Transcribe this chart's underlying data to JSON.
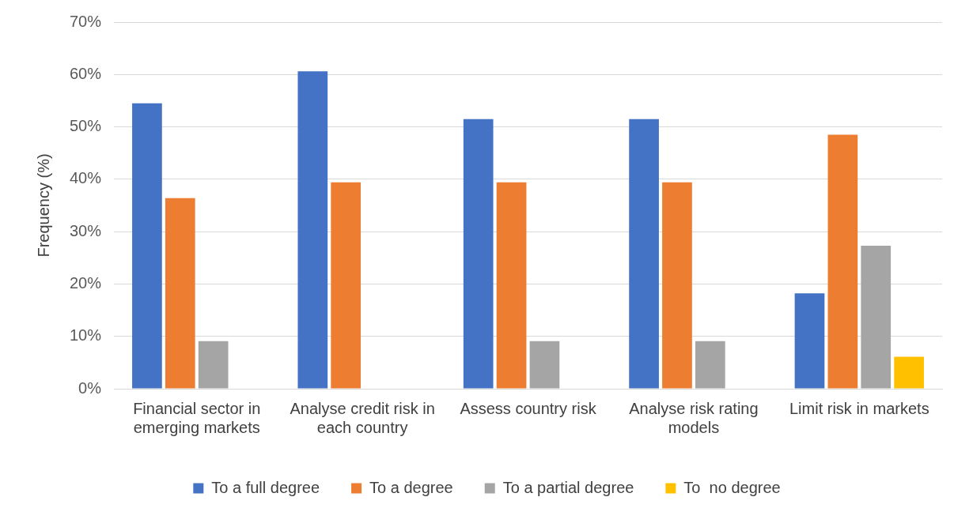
{
  "chart_data": {
    "type": "bar",
    "ylabel": "Frequency (%)",
    "categories": [
      "Financial sector in emerging markets",
      "Analyse credit risk in each country",
      "Assess country risk",
      "Analyse risk rating models",
      "Limit risk in markets"
    ],
    "series": [
      {
        "name": "To a full degree",
        "color": "#4472c4",
        "values": [
          54.5,
          60.6,
          51.5,
          51.5,
          18.2
        ]
      },
      {
        "name": "To a degree",
        "color": "#ed7d31",
        "values": [
          36.4,
          39.4,
          39.4,
          39.4,
          48.5
        ]
      },
      {
        "name": "To a partial degree",
        "color": "#a5a5a5",
        "values": [
          9.1,
          0,
          9.1,
          9.1,
          27.3
        ]
      },
      {
        "name": "To  no degree",
        "color": "#ffc000",
        "values": [
          0,
          0,
          0,
          0,
          6.1
        ]
      }
    ],
    "ylim": [
      0,
      70
    ],
    "yticks": [
      {
        "value": 0,
        "label": "0%"
      },
      {
        "value": 10,
        "label": "10%"
      },
      {
        "value": 20,
        "label": "20%"
      },
      {
        "value": 30,
        "label": "30%"
      },
      {
        "value": 40,
        "label": "40%"
      },
      {
        "value": 50,
        "label": "50%"
      },
      {
        "value": 60,
        "label": "60%"
      },
      {
        "value": 70,
        "label": "70%"
      }
    ],
    "grid": "y",
    "legend": "bottom"
  }
}
